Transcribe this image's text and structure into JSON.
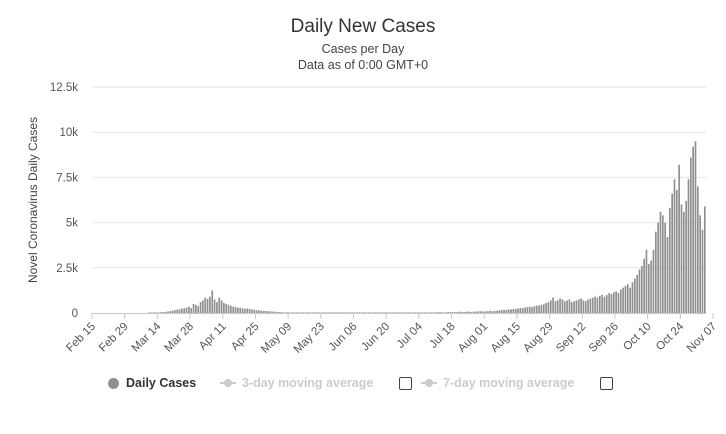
{
  "chart_data": {
    "type": "bar",
    "title": "Daily New Cases",
    "subtitle_lines": [
      "Cases per Day",
      "Data as of 0:00 GMT+0"
    ],
    "xlabel": "",
    "ylabel": "Novel Coronavirus Daily Cases",
    "ylim": [
      0,
      12500
    ],
    "yticks": [
      0,
      2500,
      5000,
      7500,
      10000,
      12500
    ],
    "ytick_labels": [
      "0",
      "2.5k",
      "5k",
      "7.5k",
      "10k",
      "12.5k"
    ],
    "x_start": "2020-02-15",
    "xtick_labels": [
      "Feb 15",
      "Feb 29",
      "Mar 14",
      "Mar 28",
      "Apr 11",
      "Apr 25",
      "May 09",
      "May 23",
      "Jun 06",
      "Jun 20",
      "Jul 04",
      "Jul 18",
      "Aug 01",
      "Aug 15",
      "Aug 29",
      "Sep 12",
      "Sep 26",
      "Oct 10",
      "Oct 24",
      "Nov 07"
    ],
    "grid": true,
    "legend_position": "bottom",
    "bar_color": "#909090",
    "series": [
      {
        "name": "Daily Cases",
        "values": [
          0,
          0,
          0,
          0,
          0,
          0,
          0,
          0,
          0,
          0,
          0,
          0,
          0,
          0,
          0,
          0,
          0,
          0,
          0,
          0,
          0,
          0,
          0,
          0,
          5,
          10,
          15,
          20,
          30,
          40,
          50,
          60,
          80,
          100,
          130,
          160,
          190,
          210,
          240,
          260,
          300,
          350,
          280,
          500,
          450,
          380,
          600,
          700,
          850,
          780,
          900,
          1250,
          750,
          600,
          850,
          700,
          550,
          500,
          450,
          400,
          350,
          330,
          300,
          280,
          260,
          240,
          250,
          220,
          200,
          180,
          160,
          150,
          130,
          120,
          110,
          100,
          90,
          80,
          70,
          60,
          50,
          40,
          35,
          30,
          25,
          20,
          30,
          20,
          15,
          10,
          10,
          10,
          10,
          10,
          10,
          10,
          10,
          10,
          10,
          10,
          10,
          10,
          10,
          10,
          10,
          10,
          10,
          10,
          10,
          10,
          10,
          10,
          10,
          10,
          10,
          10,
          10,
          10,
          10,
          10,
          10,
          10,
          10,
          10,
          10,
          10,
          10,
          10,
          10,
          10,
          10,
          10,
          10,
          10,
          10,
          10,
          10,
          10,
          10,
          10,
          10,
          10,
          10,
          10,
          10,
          20,
          30,
          40,
          50,
          40,
          30,
          40,
          50,
          60,
          50,
          40,
          60,
          70,
          60,
          50,
          70,
          80,
          60,
          70,
          80,
          90,
          100,
          80,
          90,
          100,
          120,
          100,
          110,
          130,
          150,
          160,
          180,
          170,
          200,
          190,
          220,
          230,
          250,
          280,
          260,
          300,
          320,
          350,
          330,
          380,
          400,
          420,
          450,
          480,
          550,
          600,
          700,
          850,
          650,
          700,
          800,
          750,
          650,
          700,
          750,
          600,
          650,
          700,
          750,
          800,
          700,
          650,
          750,
          800,
          850,
          900,
          850,
          950,
          1000,
          900,
          1000,
          1100,
          1050,
          1150,
          1200,
          1100,
          1300,
          1400,
          1500,
          1600,
          1400,
          1700,
          1900,
          2100,
          2400,
          2600,
          3000,
          3500,
          2700,
          2900,
          3500,
          4500,
          5000,
          5600,
          5400,
          5000,
          4200,
          5800,
          6600,
          7400,
          6800,
          8200,
          6000,
          5600,
          6200,
          7400,
          8600,
          9200,
          9500,
          7000,
          5400,
          4600,
          5900
        ]
      },
      {
        "name": "3-day moving average"
      },
      {
        "name": "7-day moving average"
      }
    ]
  }
}
